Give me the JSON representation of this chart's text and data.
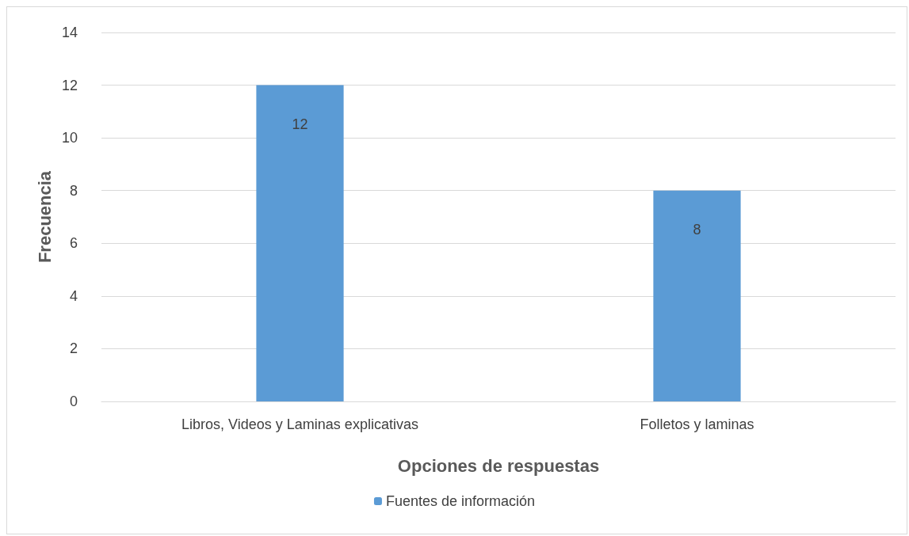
{
  "chart_data": {
    "type": "bar",
    "xlabel": "Opciones de respuestas",
    "ylabel": "Frecuencia",
    "categories": [
      "Libros, Videos y Laminas explicativas",
      "Folletos y laminas"
    ],
    "series": [
      {
        "name": "Fuentes de información",
        "color": "#5b9bd5",
        "values": [
          12,
          8
        ]
      }
    ],
    "ylim": [
      0,
      14
    ],
    "yticks": [
      0,
      2,
      4,
      6,
      8,
      10,
      12,
      14
    ],
    "grid": "y",
    "legend": "bottom",
    "data_labels": true
  }
}
